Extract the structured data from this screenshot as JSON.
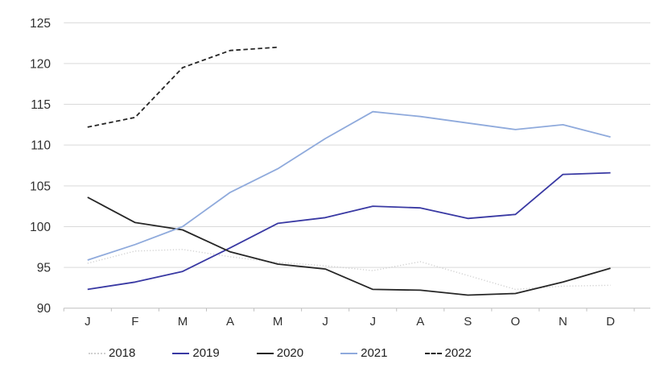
{
  "chart_data": {
    "type": "line",
    "title": "",
    "xlabel": "",
    "ylabel": "",
    "categories": [
      "J",
      "F",
      "M",
      "A",
      "M",
      "J",
      "J",
      "A",
      "S",
      "O",
      "N",
      "D"
    ],
    "ylim": [
      90,
      125
    ],
    "ytick_step": 5,
    "ytick_labels": [
      "90",
      "95",
      "100",
      "105",
      "110",
      "115",
      "120",
      "125"
    ],
    "grid": true,
    "legend_position": "bottom",
    "grid_color": "#d9d9d9",
    "axis_color": "#bfbfbf",
    "axis_text_color": "#303030",
    "series": [
      {
        "name": "2018",
        "color": "#d0d0d0",
        "style": "dotted",
        "values": [
          95.5,
          97.0,
          97.2,
          96.3,
          95.6,
          95.2,
          94.6,
          95.7,
          94.0,
          92.3,
          92.7,
          92.8
        ]
      },
      {
        "name": "2019",
        "color": "#3939a3",
        "style": "solid",
        "values": [
          92.3,
          93.2,
          94.5,
          97.4,
          100.4,
          101.1,
          102.5,
          102.3,
          101.0,
          101.5,
          106.4,
          106.6
        ]
      },
      {
        "name": "2020",
        "color": "#262626",
        "style": "solid",
        "values": [
          103.6,
          100.5,
          99.6,
          96.9,
          95.4,
          94.8,
          92.3,
          92.2,
          91.6,
          91.8,
          93.2,
          94.9
        ]
      },
      {
        "name": "2021",
        "color": "#8faadc",
        "style": "solid",
        "values": [
          95.9,
          97.8,
          100.0,
          104.2,
          107.1,
          110.8,
          114.1,
          113.5,
          112.7,
          111.9,
          112.5,
          111.0
        ]
      },
      {
        "name": "2022",
        "color": "#262626",
        "style": "dashed",
        "values": [
          112.2,
          113.4,
          119.5,
          121.6,
          122.0
        ]
      }
    ]
  }
}
